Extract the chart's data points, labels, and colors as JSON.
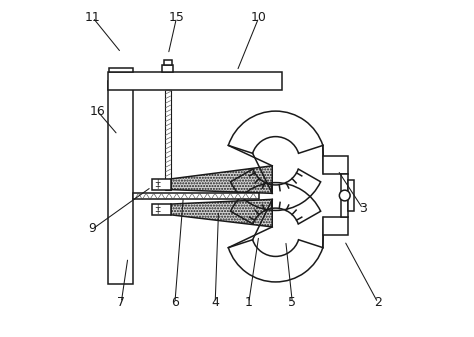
{
  "bg_color": "#ffffff",
  "line_color": "#1a1a1a",
  "figsize": [
    4.74,
    3.37
  ],
  "dpi": 100,
  "labels": {
    "11": [
      0.07,
      0.95,
      0.155,
      0.845
    ],
    "15": [
      0.32,
      0.95,
      0.295,
      0.84
    ],
    "10": [
      0.565,
      0.95,
      0.5,
      0.79
    ],
    "16": [
      0.085,
      0.67,
      0.145,
      0.6
    ],
    "9": [
      0.07,
      0.32,
      0.245,
      0.445
    ],
    "7": [
      0.155,
      0.1,
      0.175,
      0.235
    ],
    "6": [
      0.315,
      0.1,
      0.34,
      0.415
    ],
    "4": [
      0.435,
      0.1,
      0.445,
      0.375
    ],
    "1": [
      0.535,
      0.1,
      0.565,
      0.3
    ],
    "5": [
      0.665,
      0.1,
      0.645,
      0.285
    ],
    "2": [
      0.92,
      0.1,
      0.82,
      0.285
    ],
    "3": [
      0.875,
      0.38,
      0.8,
      0.495
    ]
  }
}
